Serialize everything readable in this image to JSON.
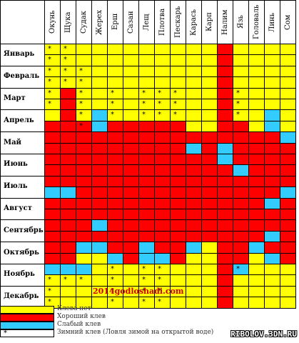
{
  "fish": [
    "Окунь",
    "Щука",
    "Судак",
    "Жерех",
    "Ерш",
    "Сазан",
    "Лещ",
    "Плотва",
    "Пескарь",
    "Карась",
    "Карп",
    "Налим",
    "Язь",
    "Головаль",
    "Линь",
    "Сом"
  ],
  "months": [
    "Январь",
    "Февраль",
    "Март",
    "Апрель",
    "Май",
    "Июнь",
    "Июль",
    "Август",
    "Сентябрь",
    "Октябрь",
    "Ноябрь",
    "Декабрь"
  ],
  "colors": {
    "Y": "#ffff00",
    "R": "#ff0000",
    "B": "#33ccff"
  },
  "grid": [
    [
      "YYYYYYYYYYYRYYYY",
      "YYYYYYYYYYYRYYYY"
    ],
    [
      "YYYYYYYYYYYRYYYY",
      "YYYYYYYYYYYRYYYY"
    ],
    [
      "YRYYYYYYYYYRYYYY",
      "YRYYYYYYYYYRYYYY"
    ],
    [
      "YRYBYYYYYYYRYYBY",
      "RRRBRRRRRYYRRYBY"
    ],
    [
      "RRRRRRRRRRRRRRRB",
      "RRRRRRRRRBRBRRRR"
    ],
    [
      "RRRRRRRRRRRBRRRR",
      "RRRRRRRRRRRRBRRR"
    ],
    [
      "RRRRRRRRRRRRRRRR",
      "BBRRRRRRRRRRRRRB"
    ],
    [
      "RRRRRRRRRRRRRRBR",
      "RRRRRRRRRRRRRRRR"
    ],
    [
      "RRRBRRRRRRRRRRRR",
      "RRRRRRRRRRRRRRBR"
    ],
    [
      "RRBBRRBRRBYRRBRR",
      "RRYYBRBBRYYRRYBR"
    ],
    [
      "BBBYYYYYYYYRBYYY",
      "YYYYYYYYYYYRYYYY"
    ],
    [
      "YYYYYYYYYYYRYYYY",
      "YYYYYYYYYYYRYYYY"
    ]
  ],
  "stars": [
    [
      "0,0",
      "0,1",
      "1,0",
      "1,1"
    ],
    [
      "0,0",
      "0,1",
      "0,2",
      "1,0",
      "1,1",
      "1,2"
    ],
    [
      "0,0",
      "0,2",
      "0,4",
      "0,6",
      "0,7",
      "0,8",
      "0,12",
      "1,0",
      "1,2",
      "1,4",
      "1,6",
      "1,7",
      "1,8",
      "1,12"
    ],
    [
      "0,2",
      "0,4",
      "0,7",
      "0,8",
      "0,12",
      "1,2",
      "0,6"
    ],
    [],
    [],
    [],
    [],
    [],
    [],
    [
      "0,4",
      "0,6",
      "0,7",
      "0,12",
      "1,0",
      "1,1",
      "1,2",
      "1,4",
      "1,6",
      "1,7"
    ],
    [
      "0,0",
      "0,4",
      "0,6",
      "0,7",
      "1,0",
      "1,4",
      "1,6",
      "1,7"
    ]
  ],
  "watermark": "2014godloshadi.com",
  "legend": [
    {
      "swatch": "Y",
      "label": "Клева нет"
    },
    {
      "swatch": "R",
      "label": "Хороший клев"
    },
    {
      "swatch": "B",
      "label": "Слабый клев"
    },
    {
      "swatch": "star",
      "label": "Зимний клев (Ловля зимой на открытой воде)"
    }
  ],
  "site": "RIBOLOV.3DN.RU"
}
